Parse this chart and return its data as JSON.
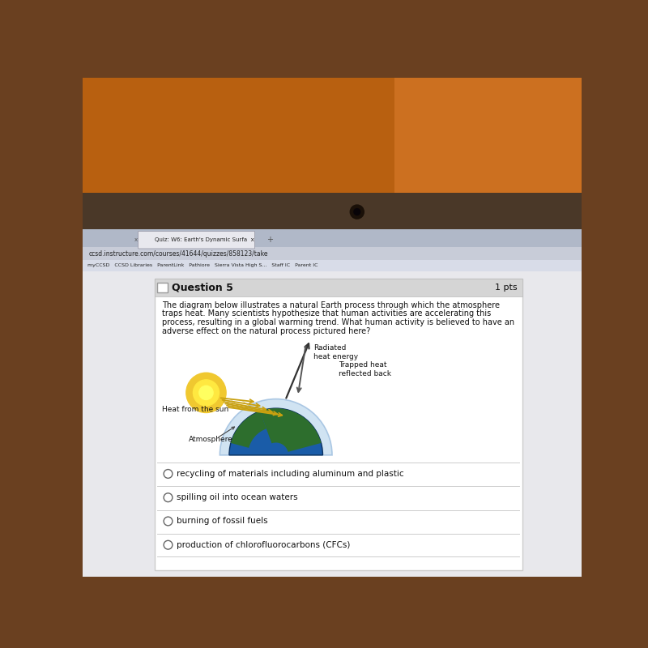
{
  "question_title": "Question 5",
  "points": "1 pts",
  "question_text_lines": [
    "The diagram below illustrates a natural Earth process through which the atmosphere",
    "traps heat. Many scientists hypothesize that human activities are accelerating this",
    "process, resulting in a global warming trend. What human activity is believed to have an",
    "adverse effect on the natural process pictured here?"
  ],
  "diagram_labels": {
    "radiated_heat": "Radiated\nheat energy",
    "heat_from_sun": "Heat from the sun",
    "trapped_heat": "Trapped heat\nreflected back",
    "atmosphere": "Atmosphere"
  },
  "answer_choices": [
    "recycling of materials including aluminum and plastic",
    "spilling oil into ocean waters",
    "burning of fossil fuels",
    "production of chlorofluorocarbons (CFCs)"
  ],
  "sun_color": "#e8b800",
  "sun_outer_color": "#f0c830",
  "earth_ocean_color": "#1a5ca8",
  "earth_land_color": "#2d6e2d",
  "atmosphere_color": "#c8dff0",
  "atmosphere_edge": "#a0c0e0",
  "arrow_incoming_color": "#c8a010",
  "arrow_outgoing_color": "#555555",
  "divider_color": "#cccccc",
  "text_color": "#111111",
  "header_bg": "#d5d5d5",
  "panel_bg": "#ffffff",
  "browser_tab_bg": "#b0b8c8",
  "browser_bar_bg": "#c8ccd8",
  "browser_bookmark_bg": "#d8dce8",
  "photo_bg_left": "#b84000",
  "photo_bg_right": "#c86020",
  "laptop_bar_color": "#4a3828",
  "outer_bg": "#6a4020"
}
